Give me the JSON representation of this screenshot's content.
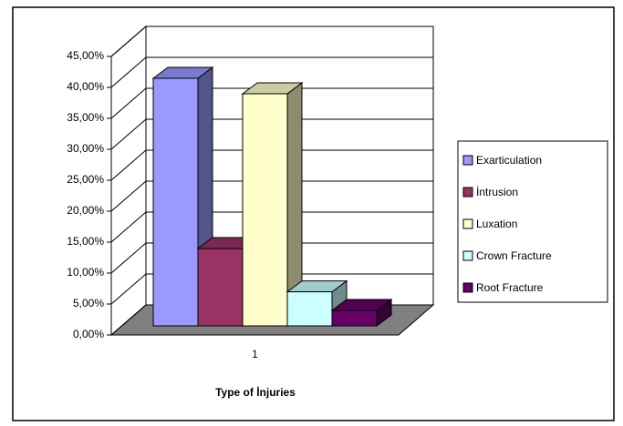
{
  "chart_data": {
    "type": "bar3d",
    "x_label": "Type of İnjuries",
    "categories": [
      "1"
    ],
    "series": [
      {
        "name": "Exarticulation",
        "color": "#9999ff",
        "values": [
          40
        ]
      },
      {
        "name": "İntrusion",
        "color": "#993366",
        "values": [
          12.5
        ]
      },
      {
        "name": "Luxation",
        "color": "#ffffcc",
        "values": [
          37.5
        ]
      },
      {
        "name": "Crown Fracture",
        "color": "#ccffff",
        "values": [
          5.5
        ]
      },
      {
        "name": "Root Fracture",
        "color": "#660066",
        "values": [
          2.5
        ]
      }
    ],
    "ylim": [
      0,
      45
    ],
    "yticks": [
      {
        "value": 0,
        "label": "0,00%"
      },
      {
        "value": 5,
        "label": "5,00%"
      },
      {
        "value": 10,
        "label": "10,00%"
      },
      {
        "value": 15,
        "label": "15,00%"
      },
      {
        "value": 20,
        "label": "20,00%"
      },
      {
        "value": 25,
        "label": "25,00%"
      },
      {
        "value": 30,
        "label": "30,00%"
      },
      {
        "value": 35,
        "label": "35,00%"
      },
      {
        "value": 40,
        "label": "40,00%"
      },
      {
        "value": 45,
        "label": "45,00%"
      }
    ],
    "grid": true,
    "legend": "right"
  }
}
